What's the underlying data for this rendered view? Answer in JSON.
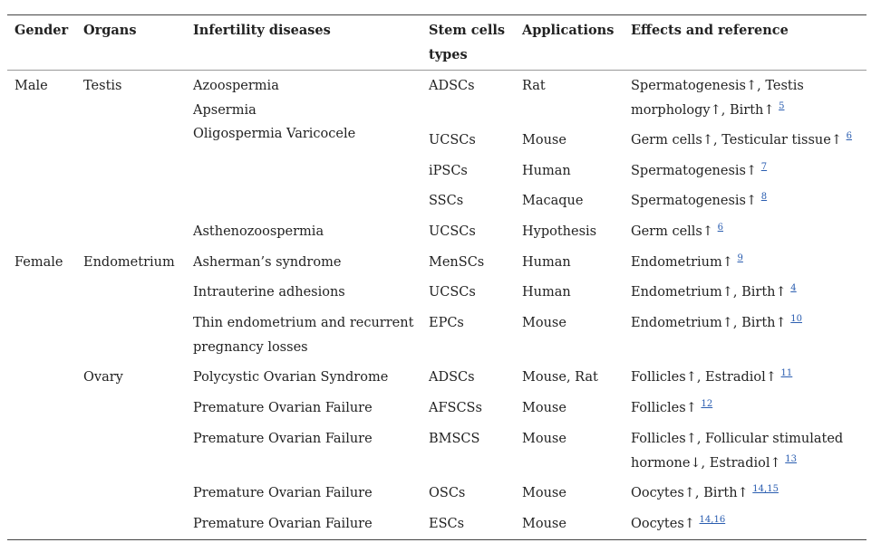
{
  "table": {
    "header": [
      "Gender",
      "Organs",
      "Infertility diseases",
      "Stem cells types",
      "Applications",
      "Effects and reference"
    ],
    "rows": [
      [
        "Male",
        "Testis",
        "Azoospermia\nApsermia\nOligospermia Varicocele",
        "ADSCs",
        "Rat",
        {
          "text": "Spermatogenesis↑, Testis morphology↑, Birth↑",
          "ref": "5"
        }
      ],
      [
        null,
        null,
        null,
        "UCSCs",
        "Mouse",
        {
          "text": "Germ cells↑, Testicular tissue↑",
          "ref": "6"
        }
      ],
      [
        null,
        null,
        null,
        "iPSCs",
        "Human",
        {
          "text": "Spermatogenesis↑",
          "ref": "7"
        }
      ],
      [
        null,
        null,
        null,
        "SSCs",
        "Macaque",
        {
          "text": "Spermatogenesis↑",
          "ref": "8"
        }
      ],
      [
        null,
        null,
        "Asthenozoospermia",
        "UCSCs",
        "Hypothesis",
        {
          "text": "Germ cells↑",
          "ref": "6"
        }
      ],
      [
        "Female",
        "Endometrium",
        "Asherman’s syndrome",
        "MenSCs",
        "Human",
        {
          "text": "Endometrium↑",
          "ref": "9"
        }
      ],
      [
        null,
        null,
        "Intrauterine adhesions",
        "UCSCs",
        "Human",
        {
          "text": "Endometrium↑, Birth↑",
          "ref": "4"
        }
      ],
      [
        null,
        null,
        "Thin endometrium and recurrent pregnancy losses",
        "EPCs",
        "Mouse",
        {
          "text": "Endometrium↑, Birth↑",
          "ref": "10"
        }
      ],
      [
        null,
        "Ovary",
        "Polycystic Ovarian Syndrome",
        "ADSCs",
        "Mouse, Rat",
        {
          "text": "Follicles↑, Estradiol↑",
          "ref": "11"
        }
      ],
      [
        null,
        null,
        "Premature Ovarian Failure",
        "AFSCSs",
        "Mouse",
        {
          "text": "Follicles↑",
          "ref": "12"
        }
      ],
      [
        null,
        null,
        "Premature Ovarian Failure",
        "BMSCS",
        "Mouse",
        {
          "text": "Follicles↑, Follicular stimulated hormone↓, Estradiol↑",
          "ref": "13"
        }
      ],
      [
        null,
        null,
        "Premature Ovarian Failure",
        "OSCs",
        "Mouse",
        {
          "text": "Oocytes↑, Birth↑",
          "ref": "14,15"
        }
      ],
      [
        null,
        null,
        "Premature Ovarian Failure",
        "ESCs",
        "Mouse",
        {
          "text": "Oocytes↑",
          "ref": "14,16"
        }
      ]
    ]
  }
}
